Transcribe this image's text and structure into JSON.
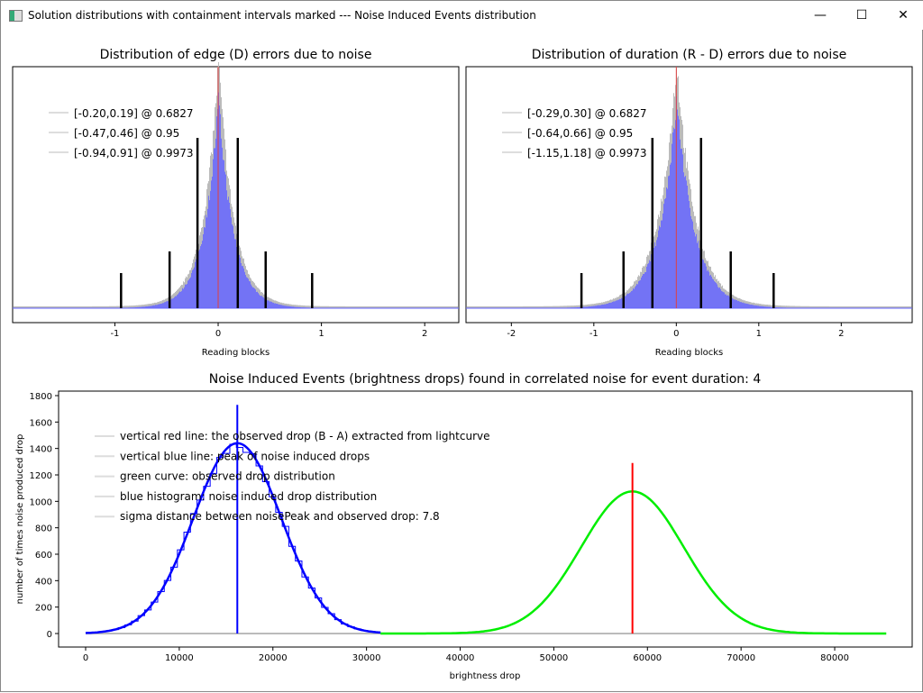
{
  "window": {
    "title": "Solution distributions with containment intervals marked --- Noise Induced Events distribution",
    "minimize": "—",
    "maximize": "☐",
    "close": "✕"
  },
  "chart_data": [
    {
      "type": "bar",
      "title": "Distribution of edge (D) errors due to noise",
      "xlabel": "Reading blocks",
      "xlim": [
        -1.99,
        2.33
      ],
      "xticks": [
        -1,
        0,
        1,
        2
      ],
      "histogram_color": "#6666ff",
      "center_line_color": "#e04040",
      "center": 0,
      "intervals": [
        {
          "lo": -0.2,
          "hi": 0.19,
          "level": 0.6827,
          "label": "[-0.20,0.19] @ 0.6827"
        },
        {
          "lo": -0.47,
          "hi": 0.46,
          "level": 0.95,
          "label": "[-0.47,0.46] @ 0.95"
        },
        {
          "lo": -0.94,
          "hi": 0.91,
          "level": 0.9973,
          "label": "[-0.94,0.91] @ 0.9973"
        }
      ]
    },
    {
      "type": "bar",
      "title": "Distribution of duration (R - D) errors due to noise",
      "xlabel": "Reading blocks",
      "xlim": [
        -2.55,
        2.86
      ],
      "xticks": [
        -2,
        -1,
        0,
        1,
        2
      ],
      "histogram_color": "#6666ff",
      "center_line_color": "#e04040",
      "center": 0,
      "intervals": [
        {
          "lo": -0.29,
          "hi": 0.3,
          "level": 0.6827,
          "label": "[-0.29,0.30] @ 0.6827"
        },
        {
          "lo": -0.64,
          "hi": 0.66,
          "level": 0.95,
          "label": "[-0.64,0.66] @ 0.95"
        },
        {
          "lo": -1.15,
          "hi": 1.18,
          "level": 0.9973,
          "label": "[-1.15,1.18] @ 0.9973"
        }
      ]
    },
    {
      "type": "line",
      "title": "Noise Induced Events (brightness drops) found in correlated noise for event duration: 4",
      "xlabel": "brightness drop",
      "ylabel": "number of times noise produced drop",
      "xlim": [
        -4500,
        86000
      ],
      "ylim": [
        -100,
        1830
      ],
      "xticks": [
        0,
        10000,
        20000,
        30000,
        40000,
        50000,
        60000,
        70000,
        80000
      ],
      "yticks": [
        0,
        200,
        400,
        600,
        800,
        1000,
        1200,
        1400,
        1600,
        1800
      ],
      "legend": [
        "vertical red line: the observed drop (B - A) extracted from lightcurve",
        "vertical blue line: peak of noise induced drops",
        "green curve: observed drop distribution",
        "blue histogram: noise induced drop distribution",
        "sigma distance between noisePeak and observed drop: 7.8"
      ],
      "noise_peak": 16200,
      "noise_peak_count": 1440,
      "noise_sigma": 4700,
      "observed_drop": 58400,
      "observed_peak_count": 1075,
      "observed_sigma": 5500,
      "blue": "#0000ff",
      "green": "#00ee00",
      "red": "#ff0000"
    }
  ]
}
